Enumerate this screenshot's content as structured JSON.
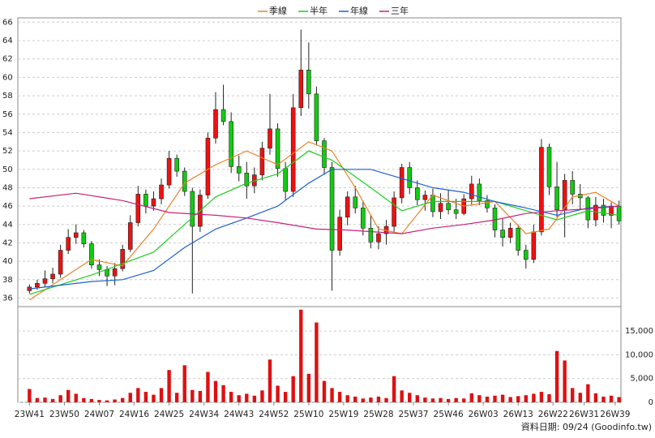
{
  "chart_data": [
    {
      "type": "candlestick",
      "series": [
        {
          "name": "季線",
          "color": "#e8822a",
          "x": [
            0,
            8,
            16,
            24,
            32,
            40,
            48,
            56,
            64,
            72,
            78,
            84,
            90,
            96,
            104,
            112,
            120,
            128,
            134,
            140,
            146,
            152
          ],
          "values": [
            35.8,
            38,
            40.2,
            39.5,
            43.5,
            48.5,
            50.5,
            52,
            50.5,
            53,
            52,
            48,
            43.5,
            43,
            47.2,
            46,
            46.5,
            43,
            43.5,
            47,
            47.5,
            46
          ]
        },
        {
          "name": "半年",
          "color": "#1fcc1f",
          "x": [
            0,
            16,
            32,
            40,
            48,
            56,
            64,
            72,
            78,
            88,
            96,
            104,
            112,
            120,
            128,
            136,
            144,
            152
          ],
          "values": [
            36.4,
            38.5,
            41,
            44,
            47,
            48.5,
            49.5,
            52,
            51,
            48,
            45.5,
            46.5,
            46.5,
            46.5,
            45.5,
            44.5,
            45.5,
            45
          ]
        },
        {
          "name": "年線",
          "color": "#1f5fd6",
          "x": [
            0,
            16,
            24,
            32,
            40,
            48,
            56,
            64,
            72,
            78,
            88,
            96,
            104,
            112,
            120,
            128,
            136,
            144,
            152
          ],
          "values": [
            37,
            37.8,
            38,
            39,
            41.5,
            43.5,
            44.7,
            46,
            48.5,
            50,
            50,
            49,
            48,
            47.5,
            46.5,
            45.8,
            45,
            45.8,
            46
          ]
        },
        {
          "name": "三年",
          "color": "#c8207a",
          "x": [
            0,
            12,
            24,
            36,
            48,
            56,
            64,
            74,
            82,
            96,
            104,
            112,
            120,
            128,
            136,
            144,
            152
          ],
          "values": [
            46.8,
            47.4,
            46.6,
            45.3,
            45,
            44.7,
            44.2,
            43.5,
            43.4,
            43,
            43.6,
            44,
            44.5,
            45.2,
            45.5,
            45.7,
            46
          ]
        }
      ],
      "candles": {
        "up_color": "#ee1111",
        "down_color": "#11cc11",
        "x": [
          0,
          2,
          4,
          6,
          8,
          10,
          12,
          14,
          16,
          18,
          20,
          22,
          24,
          26,
          28,
          30,
          32,
          34,
          36,
          38,
          40,
          42,
          44,
          46,
          48,
          50,
          52,
          54,
          56,
          58,
          60,
          62,
          64,
          66,
          68,
          70,
          72,
          74,
          76,
          78,
          80,
          82,
          84,
          86,
          88,
          90,
          92,
          94,
          96,
          98,
          100,
          102,
          104,
          106,
          108,
          110,
          112,
          114,
          116,
          118,
          120,
          122,
          124,
          126,
          128,
          130,
          132,
          134,
          136,
          138,
          140,
          142,
          144,
          146,
          148,
          150,
          152
        ],
        "open": [
          36.8,
          37.2,
          37.6,
          38.1,
          38.6,
          41.2,
          42.6,
          43.1,
          41.9,
          39.6,
          39.1,
          38.4,
          39.2,
          41.3,
          44.2,
          47.3,
          46,
          46.8,
          48.3,
          51.2,
          49.8,
          47.6,
          43.8,
          47.2,
          53.4,
          56.5,
          55.2,
          50.3,
          49.6,
          48.2,
          49.4,
          52.3,
          54.4,
          50.1,
          47.6,
          56.7,
          60.8,
          58.2,
          53.1,
          50.2,
          41.2,
          44.8,
          47,
          45.8,
          43.6,
          42.1,
          43,
          43.8,
          46.9,
          50.2,
          48,
          46.7,
          47.2,
          45.4,
          46.3,
          45.6,
          45.2,
          46.8,
          48.4,
          46.6,
          45.8,
          43.4,
          42.6,
          43.6,
          41.2,
          40.2,
          43.2,
          52.4,
          48.1,
          45.6,
          48.8,
          47.3,
          46.9,
          44.5,
          46.1,
          45,
          46
        ],
        "high": [
          37.5,
          38,
          39,
          39.3,
          41.8,
          43.5,
          44,
          43.4,
          42.2,
          40.2,
          39.5,
          39.8,
          41.8,
          45,
          48.2,
          47.8,
          47.6,
          49,
          52,
          51.6,
          50.2,
          48,
          47.8,
          54,
          58.4,
          59.2,
          56.2,
          51.5,
          50.8,
          50.2,
          53,
          58.2,
          55,
          50.8,
          58.2,
          65.2,
          63.8,
          59,
          53.4,
          50.8,
          45.6,
          47.6,
          48.2,
          46.6,
          45,
          43.8,
          44.5,
          47.6,
          50.6,
          50.8,
          48.8,
          47.7,
          47.9,
          47.4,
          47.8,
          46.8,
          47.3,
          49.3,
          49,
          47.2,
          46.2,
          44.6,
          44.2,
          44,
          41.8,
          44,
          53.3,
          52.8,
          50.8,
          49.5,
          49.8,
          48.4,
          47.1,
          47,
          46.8,
          46.4,
          46.6
        ],
        "low": [
          36.5,
          36.9,
          37.2,
          37.6,
          38.2,
          40.8,
          41.9,
          41.5,
          39.2,
          38.4,
          37.3,
          37.4,
          38.9,
          41,
          43.8,
          45.2,
          45.5,
          46.2,
          47.9,
          49.2,
          47.1,
          36.5,
          43.2,
          46.8,
          52.8,
          54.8,
          49.6,
          48.7,
          46.8,
          47.4,
          48.8,
          51.6,
          49.2,
          46.6,
          47,
          55.8,
          56.6,
          52.6,
          49.4,
          36.8,
          40.6,
          43.9,
          45.2,
          42.8,
          41.4,
          41.3,
          41.8,
          43.2,
          46.3,
          47.3,
          46.1,
          45.5,
          44.8,
          44.6,
          45.1,
          44.6,
          45,
          46.2,
          46.1,
          45.3,
          42.6,
          41.6,
          42,
          40.6,
          39.2,
          39.8,
          42.8,
          47.2,
          44.8,
          42.6,
          46.2,
          45.6,
          43.6,
          43.8,
          44.2,
          43.6,
          44
        ],
        "close": [
          37.2,
          37.6,
          38.1,
          38.6,
          41.2,
          42.6,
          43.1,
          41.9,
          39.6,
          39.1,
          38.4,
          39.2,
          41.3,
          44.2,
          47.3,
          46,
          46.8,
          48.3,
          51.2,
          49.8,
          47.6,
          43.8,
          47.2,
          53.4,
          56.5,
          55.2,
          50.3,
          49.6,
          48.2,
          49.4,
          52.3,
          54.4,
          50.1,
          47.6,
          56.7,
          60.8,
          58.2,
          53.1,
          50.2,
          41.2,
          44.8,
          47,
          45.8,
          43.6,
          42.1,
          43,
          43.8,
          46.9,
          50.2,
          48,
          46.7,
          47.2,
          45.4,
          46.3,
          45.6,
          45.2,
          46.8,
          48.4,
          46.6,
          45.8,
          43.4,
          42.6,
          43.6,
          41.2,
          40.2,
          43.2,
          52.4,
          48.1,
          45.6,
          48.8,
          47.3,
          46.9,
          44.5,
          46.1,
          45,
          46,
          44.4
        ]
      },
      "xlim": [
        -3,
        152.5
      ],
      "ylim": [
        35.6,
        66.3
      ],
      "yticks": [
        36,
        38,
        40,
        42,
        44,
        46,
        48,
        50,
        52,
        54,
        56,
        58,
        60,
        62,
        64,
        66
      ],
      "grid": true
    },
    {
      "type": "bar",
      "color": "#dd1111",
      "x": [
        0,
        2,
        4,
        6,
        8,
        10,
        12,
        14,
        16,
        18,
        20,
        22,
        24,
        26,
        28,
        30,
        32,
        34,
        36,
        38,
        40,
        42,
        44,
        46,
        48,
        50,
        52,
        54,
        56,
        58,
        60,
        62,
        64,
        66,
        68,
        70,
        72,
        74,
        76,
        78,
        80,
        82,
        84,
        86,
        88,
        90,
        92,
        94,
        96,
        98,
        100,
        102,
        104,
        106,
        108,
        110,
        112,
        114,
        116,
        118,
        120,
        122,
        124,
        126,
        128,
        130,
        132,
        134,
        136,
        138,
        140,
        142,
        144,
        146,
        148,
        150,
        152
      ],
      "values": [
        2800,
        900,
        1000,
        700,
        1500,
        2600,
        1800,
        900,
        700,
        500,
        400,
        600,
        900,
        2000,
        3000,
        2200,
        1600,
        3000,
        6800,
        2000,
        7800,
        2600,
        2400,
        6400,
        4500,
        3600,
        2200,
        1500,
        1800,
        1400,
        2500,
        9000,
        3500,
        2200,
        5500,
        19500,
        6000,
        16800,
        4500,
        3000,
        2200,
        1500,
        1200,
        800,
        1000,
        1200,
        900,
        5500,
        2500,
        2000,
        1500,
        1000,
        800,
        900,
        700,
        900,
        800,
        1900,
        1500,
        1200,
        1400,
        1600,
        1100,
        1300,
        1500,
        1800,
        2200,
        1700,
        10800,
        8800,
        3000,
        2000,
        3800,
        1900,
        1200,
        1400,
        1100
      ],
      "xlim": [
        -3,
        152.5
      ],
      "ylim": [
        0,
        19800
      ],
      "yticks": [
        0,
        {
          "value": 5000,
          "label": "5,000"
        },
        {
          "value": 10000,
          "label": "10,000"
        },
        {
          "value": 15000,
          "label": "15,000"
        }
      ],
      "xticks": [
        {
          "value": 0,
          "label": "23W41"
        },
        {
          "value": 9,
          "label": "23W50"
        },
        {
          "value": 18,
          "label": "24W07"
        },
        {
          "value": 27,
          "label": "24W16"
        },
        {
          "value": 36,
          "label": "24W25"
        },
        {
          "value": 45,
          "label": "24W34"
        },
        {
          "value": 54,
          "label": "24W43"
        },
        {
          "value": 63,
          "label": "24W52"
        },
        {
          "value": 72,
          "label": "25W10"
        },
        {
          "value": 81,
          "label": "25W19"
        },
        {
          "value": 90,
          "label": "25W28"
        },
        {
          "value": 99,
          "label": "25W37"
        },
        {
          "value": 108,
          "label": "25W46"
        },
        {
          "value": 117,
          "label": "26W03"
        },
        {
          "value": 126,
          "label": "26W13"
        },
        {
          "value": 135,
          "label": "26W22"
        },
        {
          "value": 143,
          "label": "26W31"
        },
        {
          "value": 151,
          "label": "26W39"
        }
      ],
      "grid": true,
      "footnote": "資料日期: 09/24 (Goodinfo.tw)"
    }
  ]
}
